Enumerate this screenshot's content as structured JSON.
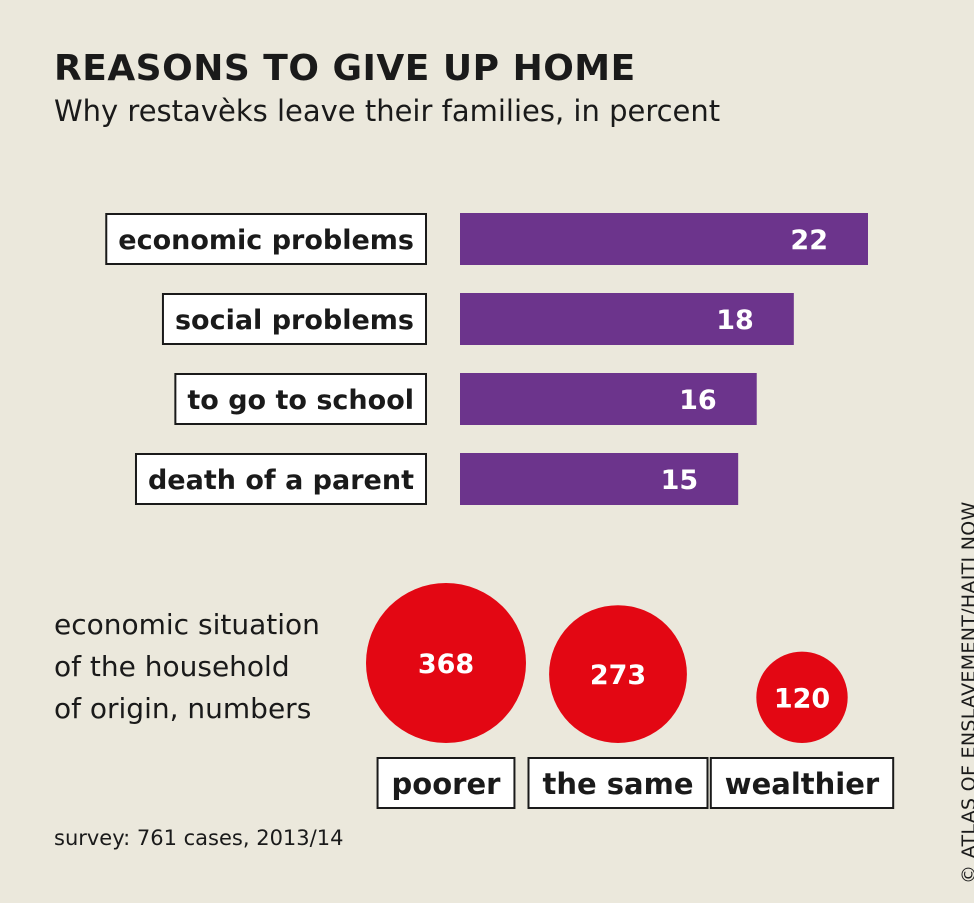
{
  "title": "REASONS TO GIVE UP HOME",
  "subtitle": "Why restavèks leave their families, in percent",
  "colors": {
    "bar": "#6c348c",
    "bubble": "#e30713",
    "background": "#ebe8dc"
  },
  "chart_data": [
    {
      "type": "bar",
      "orientation": "horizontal",
      "categories": [
        "economic problems",
        "social problems",
        "to go to school",
        "death of a parent"
      ],
      "values": [
        22,
        18,
        16,
        15
      ],
      "xlim": [
        0,
        22
      ],
      "grid": false
    },
    {
      "type": "bubble",
      "caption": [
        "economic situation",
        "of the household",
        "of origin, numbers"
      ],
      "categories": [
        "poorer",
        "the same",
        "wealthier"
      ],
      "values": [
        368,
        273,
        120
      ]
    }
  ],
  "footnote": "survey: 761 cases, 2013/14",
  "credit": "© ATLAS OF ENSLAVEMENT/HAITI NOW"
}
